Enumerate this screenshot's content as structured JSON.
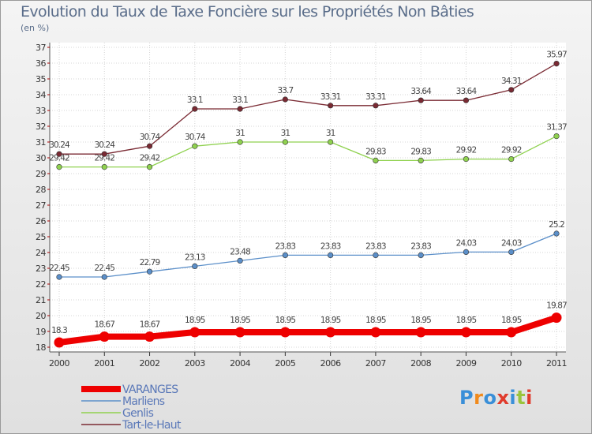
{
  "title": "Evolution du Taux de Taxe Foncière sur les Propriétés Non Bâties",
  "unit": "(en %)",
  "logo": {
    "text": "Proxiti",
    "colors": [
      "#3a8fd8",
      "#f08a1c",
      "#3a8fd8",
      "#e03b2c",
      "#3a8fd8",
      "#9ac43c",
      "#e03b2c"
    ]
  },
  "chart_data": {
    "type": "line",
    "title": "Evolution du Taux de Taxe Foncière sur les Propriétés Non Bâties",
    "ylabel": "(en %)",
    "xlabel": "",
    "x": [
      "2000",
      "2001",
      "2002",
      "2003",
      "2004",
      "2005",
      "2006",
      "2007",
      "2008",
      "2009",
      "2010",
      "2011"
    ],
    "ylim": [
      18,
      37
    ],
    "yticks": [
      18,
      19,
      20,
      21,
      22,
      23,
      24,
      25,
      26,
      27,
      28,
      29,
      30,
      31,
      32,
      33,
      34,
      35,
      36,
      37
    ],
    "grid": true,
    "legend_position": "bottom-left",
    "series": [
      {
        "name": "VARANGES",
        "color": "#ee0000",
        "highlight": true,
        "values": [
          18.3,
          18.67,
          18.67,
          18.95,
          18.95,
          18.95,
          18.95,
          18.95,
          18.95,
          18.95,
          18.95,
          19.87
        ],
        "labels": [
          "18.3",
          "18.67",
          "18.67",
          "18.95",
          "18.95",
          "18.95",
          "18.95",
          "18.95",
          "18.95",
          "18.95",
          "18.95",
          "19.87"
        ]
      },
      {
        "name": "Marliens",
        "color": "#5b8fc9",
        "highlight": false,
        "values": [
          22.45,
          22.45,
          22.79,
          23.13,
          23.48,
          23.83,
          23.83,
          23.83,
          23.83,
          24.03,
          24.03,
          25.2
        ],
        "labels": [
          "22.45",
          "22.45",
          "22.79",
          "23.13",
          "23.48",
          "23.83",
          "23.83",
          "23.83",
          "23.83",
          "24.03",
          "24.03",
          "25.2"
        ]
      },
      {
        "name": "Genlis",
        "color": "#8fd14f",
        "highlight": false,
        "values": [
          29.42,
          29.42,
          29.42,
          30.74,
          31,
          31,
          31,
          29.83,
          29.83,
          29.92,
          29.92,
          31.37
        ],
        "labels": [
          "29.42",
          "29.42",
          "29.42",
          "30.74",
          "31",
          "31",
          "31",
          "29.83",
          "29.83",
          "29.92",
          "29.92",
          "31.37"
        ]
      },
      {
        "name": "Tart-le-Haut",
        "color": "#7a2a33",
        "highlight": false,
        "values": [
          30.24,
          30.24,
          30.74,
          33.1,
          33.1,
          33.7,
          33.31,
          33.31,
          33.64,
          33.64,
          34.31,
          35.97
        ],
        "labels": [
          "30.24",
          "30.24",
          "30.74",
          "33.1",
          "33.1",
          "33.7",
          "33.31",
          "33.31",
          "33.64",
          "33.64",
          "34.31",
          "35.97"
        ]
      }
    ]
  }
}
